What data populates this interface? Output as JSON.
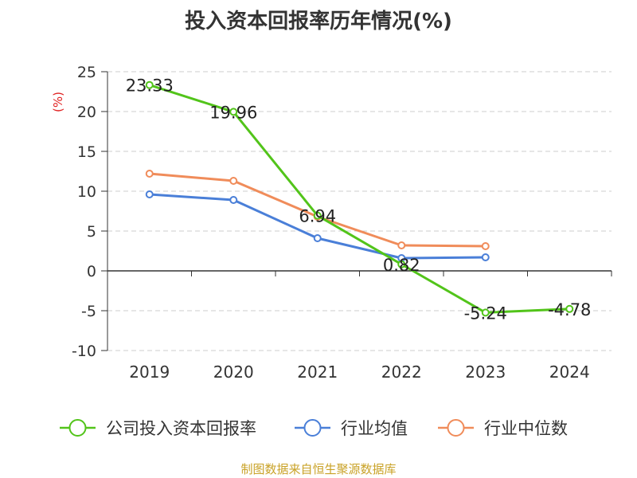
{
  "chart_data": {
    "type": "line",
    "title": "投入资本回报率历年情况(%)",
    "ylabel": "(%)",
    "xlabel": "",
    "categories": [
      "2019",
      "2020",
      "2021",
      "2022",
      "2023",
      "2024"
    ],
    "ylim": [
      -10,
      25
    ],
    "yticks": [
      25,
      20,
      15,
      10,
      5,
      0,
      -5,
      -10
    ],
    "grid": true,
    "legend_position": "bottom",
    "series": [
      {
        "name": "公司投入资本回报率",
        "color": "#52c41a",
        "values": [
          23.33,
          19.96,
          6.94,
          0.82,
          -5.24,
          -4.78
        ],
        "labels": [
          "23.33",
          "19.96",
          "6.94",
          "0.82",
          "-5.24",
          "-4.78"
        ]
      },
      {
        "name": "行业均值",
        "color": "#4a7fd8",
        "values": [
          9.6,
          8.9,
          4.1,
          1.6,
          1.7,
          null
        ]
      },
      {
        "name": "行业中位数",
        "color": "#f08c5a",
        "values": [
          12.2,
          11.3,
          6.8,
          3.2,
          3.1,
          null
        ]
      }
    ]
  },
  "source_note": "制图数据来自恒生聚源数据库"
}
